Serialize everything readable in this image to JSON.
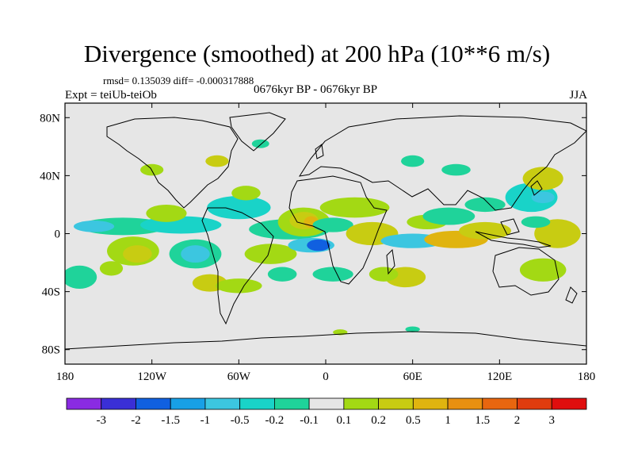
{
  "title": "Divergence (smoothed) at 200 hPa (10**6 m/s)",
  "stats": {
    "rmsd_label": "rmsd=",
    "rmsd": "0.135039",
    "diff_label": "diff=",
    "diff": "-0.000317888"
  },
  "experiment": "Expt = teiUb-teiOb",
  "period": "0676kyr BP - 0676kyr BP",
  "season": "JJA",
  "axes": {
    "lat_ticks": [
      {
        "value": 80,
        "label": "80N"
      },
      {
        "value": 40,
        "label": "40N"
      },
      {
        "value": 0,
        "label": "0"
      },
      {
        "value": -40,
        "label": "40S"
      },
      {
        "value": -80,
        "label": "80S"
      }
    ],
    "lon_ticks": [
      {
        "value": -180,
        "label": "180"
      },
      {
        "value": -120,
        "label": "120W"
      },
      {
        "value": -60,
        "label": "60W"
      },
      {
        "value": 0,
        "label": "0"
      },
      {
        "value": 60,
        "label": "60E"
      },
      {
        "value": 120,
        "label": "120E"
      },
      {
        "value": 180,
        "label": "180"
      }
    ],
    "lat_range": [
      -90,
      90
    ],
    "lon_range": [
      -180,
      180
    ]
  },
  "colorbar": {
    "colors": [
      "#8a2be2",
      "#3a2fd6",
      "#1060e0",
      "#18a0e6",
      "#3cc6e0",
      "#19d3c8",
      "#1fd39a",
      "#e6e6e6",
      "#a3d914",
      "#c8cc12",
      "#e0b40f",
      "#e89010",
      "#e8660f",
      "#e03c0e",
      "#e00e0e"
    ],
    "labels": [
      "-3",
      "-2",
      "-1.5",
      "-1",
      "-0.5",
      "-0.2",
      "-0.1",
      "0.1",
      "0.2",
      "0.5",
      "1",
      "1.5",
      "2",
      "3"
    ]
  },
  "blobs": [
    {
      "lon": -133,
      "lat": -12,
      "rx": 18,
      "ry": 10,
      "color": "#a3d914"
    },
    {
      "lon": -130,
      "lat": -14,
      "rx": 10,
      "ry": 6,
      "color": "#c8cc12"
    },
    {
      "lon": -170,
      "lat": -30,
      "rx": 12,
      "ry": 8,
      "color": "#1fd39a"
    },
    {
      "lon": -148,
      "lat": -24,
      "rx": 8,
      "ry": 5,
      "color": "#a3d914"
    },
    {
      "lon": -140,
      "lat": 5,
      "rx": 30,
      "ry": 6,
      "color": "#1fd39a"
    },
    {
      "lon": -160,
      "lat": 5,
      "rx": 14,
      "ry": 4,
      "color": "#3cc6e0"
    },
    {
      "lon": -100,
      "lat": 6,
      "rx": 28,
      "ry": 6,
      "color": "#19d3c8"
    },
    {
      "lon": -110,
      "lat": 14,
      "rx": 14,
      "ry": 6,
      "color": "#a3d914"
    },
    {
      "lon": -90,
      "lat": -14,
      "rx": 18,
      "ry": 10,
      "color": "#1fd39a"
    },
    {
      "lon": -90,
      "lat": -14,
      "rx": 10,
      "ry": 6,
      "color": "#3cc6e0"
    },
    {
      "lon": -38,
      "lat": -14,
      "rx": 18,
      "ry": 7,
      "color": "#a3d914"
    },
    {
      "lon": -60,
      "lat": 18,
      "rx": 22,
      "ry": 8,
      "color": "#19d3c8"
    },
    {
      "lon": -55,
      "lat": 28,
      "rx": 10,
      "ry": 5,
      "color": "#a3d914"
    },
    {
      "lon": -25,
      "lat": 3,
      "rx": 28,
      "ry": 7,
      "color": "#1fd39a"
    },
    {
      "lon": -10,
      "lat": -8,
      "rx": 16,
      "ry": 5,
      "color": "#3cc6e0"
    },
    {
      "lon": -5,
      "lat": -8,
      "rx": 8,
      "ry": 4,
      "color": "#1060e0"
    },
    {
      "lon": -15,
      "lat": 8,
      "rx": 18,
      "ry": 10,
      "color": "#a3d914"
    },
    {
      "lon": -15,
      "lat": 9,
      "rx": 10,
      "ry": 6,
      "color": "#c8cc12"
    },
    {
      "lon": -10,
      "lat": 8,
      "rx": 5,
      "ry": 4,
      "color": "#e0b40f"
    },
    {
      "lon": -80,
      "lat": -34,
      "rx": 12,
      "ry": 6,
      "color": "#c8cc12"
    },
    {
      "lon": -60,
      "lat": -36,
      "rx": 16,
      "ry": 5,
      "color": "#a3d914"
    },
    {
      "lon": -30,
      "lat": -28,
      "rx": 10,
      "ry": 5,
      "color": "#1fd39a"
    },
    {
      "lon": 20,
      "lat": 18,
      "rx": 24,
      "ry": 7,
      "color": "#a3d914"
    },
    {
      "lon": 5,
      "lat": 6,
      "rx": 14,
      "ry": 5,
      "color": "#1fd39a"
    },
    {
      "lon": 32,
      "lat": 0,
      "rx": 18,
      "ry": 8,
      "color": "#c8cc12"
    },
    {
      "lon": 60,
      "lat": -5,
      "rx": 22,
      "ry": 5,
      "color": "#3cc6e0"
    },
    {
      "lon": 70,
      "lat": 8,
      "rx": 14,
      "ry": 5,
      "color": "#a3d914"
    },
    {
      "lon": 90,
      "lat": -4,
      "rx": 22,
      "ry": 6,
      "color": "#e0b40f"
    },
    {
      "lon": 85,
      "lat": 12,
      "rx": 18,
      "ry": 6,
      "color": "#1fd39a"
    },
    {
      "lon": 110,
      "lat": 2,
      "rx": 18,
      "ry": 6,
      "color": "#c8cc12"
    },
    {
      "lon": 110,
      "lat": 20,
      "rx": 14,
      "ry": 5,
      "color": "#1fd39a"
    },
    {
      "lon": 142,
      "lat": 25,
      "rx": 18,
      "ry": 10,
      "color": "#19d3c8"
    },
    {
      "lon": 150,
      "lat": 25,
      "rx": 8,
      "ry": 4,
      "color": "#3cc6e0"
    },
    {
      "lon": 150,
      "lat": 38,
      "rx": 14,
      "ry": 8,
      "color": "#c8cc12"
    },
    {
      "lon": 160,
      "lat": 0,
      "rx": 16,
      "ry": 10,
      "color": "#c8cc12"
    },
    {
      "lon": 145,
      "lat": 8,
      "rx": 10,
      "ry": 4,
      "color": "#1fd39a"
    },
    {
      "lon": 150,
      "lat": -25,
      "rx": 16,
      "ry": 8,
      "color": "#a3d914"
    },
    {
      "lon": 55,
      "lat": -30,
      "rx": 14,
      "ry": 7,
      "color": "#c8cc12"
    },
    {
      "lon": 40,
      "lat": -28,
      "rx": 10,
      "ry": 5,
      "color": "#a3d914"
    },
    {
      "lon": 5,
      "lat": -28,
      "rx": 14,
      "ry": 5,
      "color": "#1fd39a"
    },
    {
      "lon": 60,
      "lat": 50,
      "rx": 8,
      "ry": 4,
      "color": "#1fd39a"
    },
    {
      "lon": 90,
      "lat": 44,
      "rx": 10,
      "ry": 4,
      "color": "#1fd39a"
    },
    {
      "lon": -75,
      "lat": 50,
      "rx": 8,
      "ry": 4,
      "color": "#c8cc12"
    },
    {
      "lon": -120,
      "lat": 44,
      "rx": 8,
      "ry": 4,
      "color": "#a3d914"
    },
    {
      "lon": -45,
      "lat": 62,
      "rx": 6,
      "ry": 3,
      "color": "#1fd39a"
    },
    {
      "lon": 10,
      "lat": -68,
      "rx": 5,
      "ry": 2,
      "color": "#a3d914"
    },
    {
      "lon": 60,
      "lat": -66,
      "rx": 5,
      "ry": 2,
      "color": "#1fd39a"
    }
  ]
}
